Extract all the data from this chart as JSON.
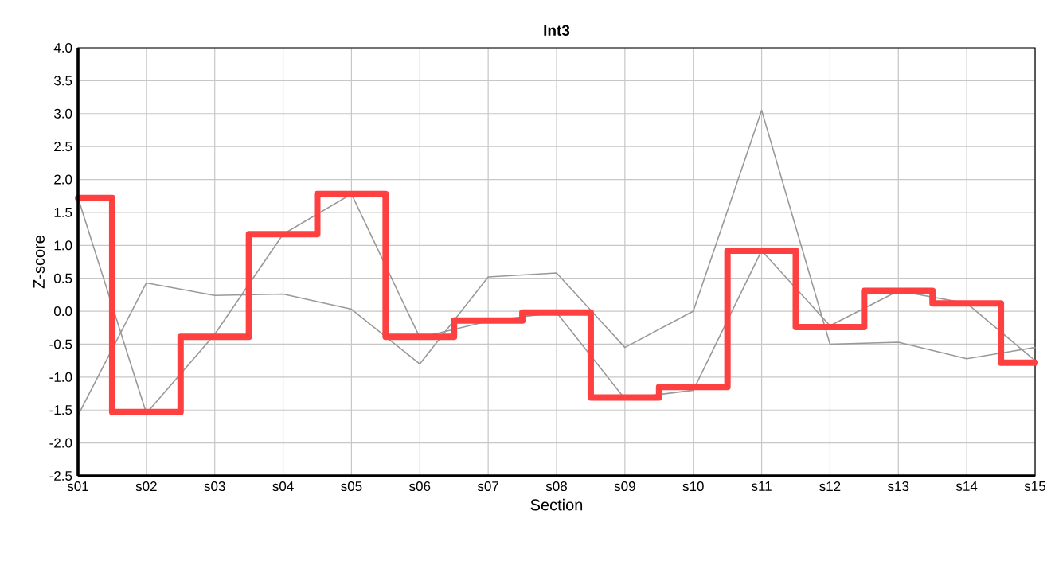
{
  "chart_data": {
    "type": "line",
    "title": "Int3",
    "xlabel": "Section",
    "ylabel": "Z-score",
    "categories": [
      "s01",
      "s02",
      "s03",
      "s04",
      "s05",
      "s06",
      "s07",
      "s08",
      "s09",
      "s10",
      "s11",
      "s12",
      "s13",
      "s14",
      "s15"
    ],
    "ylim": [
      -2.5,
      4.0
    ],
    "yticks": [
      {
        "value": -2.5,
        "label": "-2.5"
      },
      {
        "value": -2.0,
        "label": "-2.0"
      },
      {
        "value": -1.5,
        "label": "-1.5"
      },
      {
        "value": -1.0,
        "label": "-1.0"
      },
      {
        "value": -0.5,
        "label": "-0.5"
      },
      {
        "value": 0.0,
        "label": "0.0"
      },
      {
        "value": 0.5,
        "label": "0.5"
      },
      {
        "value": 1.0,
        "label": "1.0"
      },
      {
        "value": 1.5,
        "label": "1.5"
      },
      {
        "value": 2.0,
        "label": "2.0"
      },
      {
        "value": 2.5,
        "label": "2.5"
      },
      {
        "value": 3.0,
        "label": "3.0"
      },
      {
        "value": 3.5,
        "label": "3.5"
      },
      {
        "value": 4.0,
        "label": "4.0"
      }
    ],
    "grid": true,
    "marker": "none",
    "series": [
      {
        "color": "#999999",
        "values": [
          -1.58,
          0.43,
          0.24,
          0.26,
          0.03,
          -0.8,
          0.52,
          0.58,
          -0.55,
          0.0,
          3.05,
          -0.5,
          -0.47,
          -0.72,
          -0.55
        ]
      },
      {
        "color": "#999999",
        "values": [
          1.72,
          -1.55,
          -0.35,
          1.17,
          1.78,
          -0.4,
          -0.15,
          -0.02,
          -1.33,
          -1.2,
          0.92,
          -0.22,
          0.31,
          0.12,
          -0.75
        ]
      },
      {
        "type": "step",
        "color": "#ff4040",
        "values": [
          1.72,
          -1.53,
          -0.39,
          1.17,
          1.78,
          -0.39,
          -0.14,
          -0.02,
          -1.31,
          -1.15,
          0.92,
          -0.24,
          0.31,
          0.12,
          -0.78
        ]
      }
    ]
  }
}
